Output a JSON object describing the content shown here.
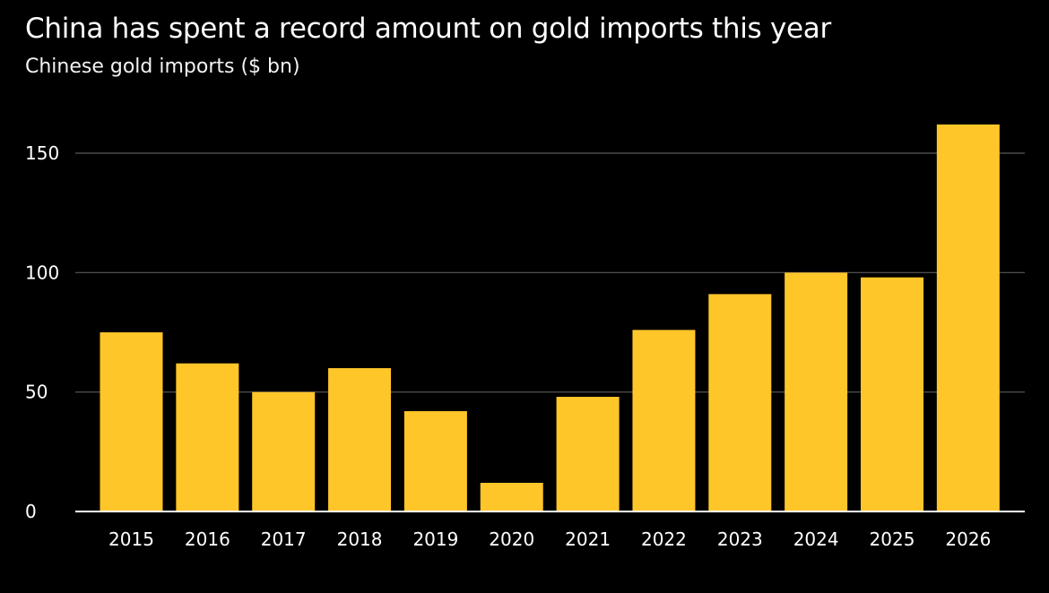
{
  "header": {
    "title": "China has spent a record amount on gold imports this year",
    "subtitle": "Chinese gold imports ($ bn)"
  },
  "chart_data": {
    "type": "bar",
    "title": "China has spent a record amount on gold imports this year",
    "subtitle": "Chinese gold imports ($ bn)",
    "xlabel": "",
    "ylabel": "",
    "categories": [
      "2015",
      "2016",
      "2017",
      "2018",
      "2019",
      "2020",
      "2021",
      "2022",
      "2023",
      "2024",
      "2025",
      "2026"
    ],
    "values": [
      75,
      62,
      50,
      60,
      42,
      12,
      48,
      76,
      91,
      100,
      98,
      162
    ],
    "ylim": [
      0,
      165
    ],
    "yticks": [
      0,
      50,
      100,
      150
    ],
    "ytick_labels": [
      "0",
      "50",
      "100",
      "150"
    ],
    "grid": true,
    "legend": "none",
    "colors": {
      "bar": "#FFC629",
      "background": "#000000",
      "grid": "#5a5a5a",
      "axis": "#ffffff",
      "text": "#ffffff"
    }
  }
}
